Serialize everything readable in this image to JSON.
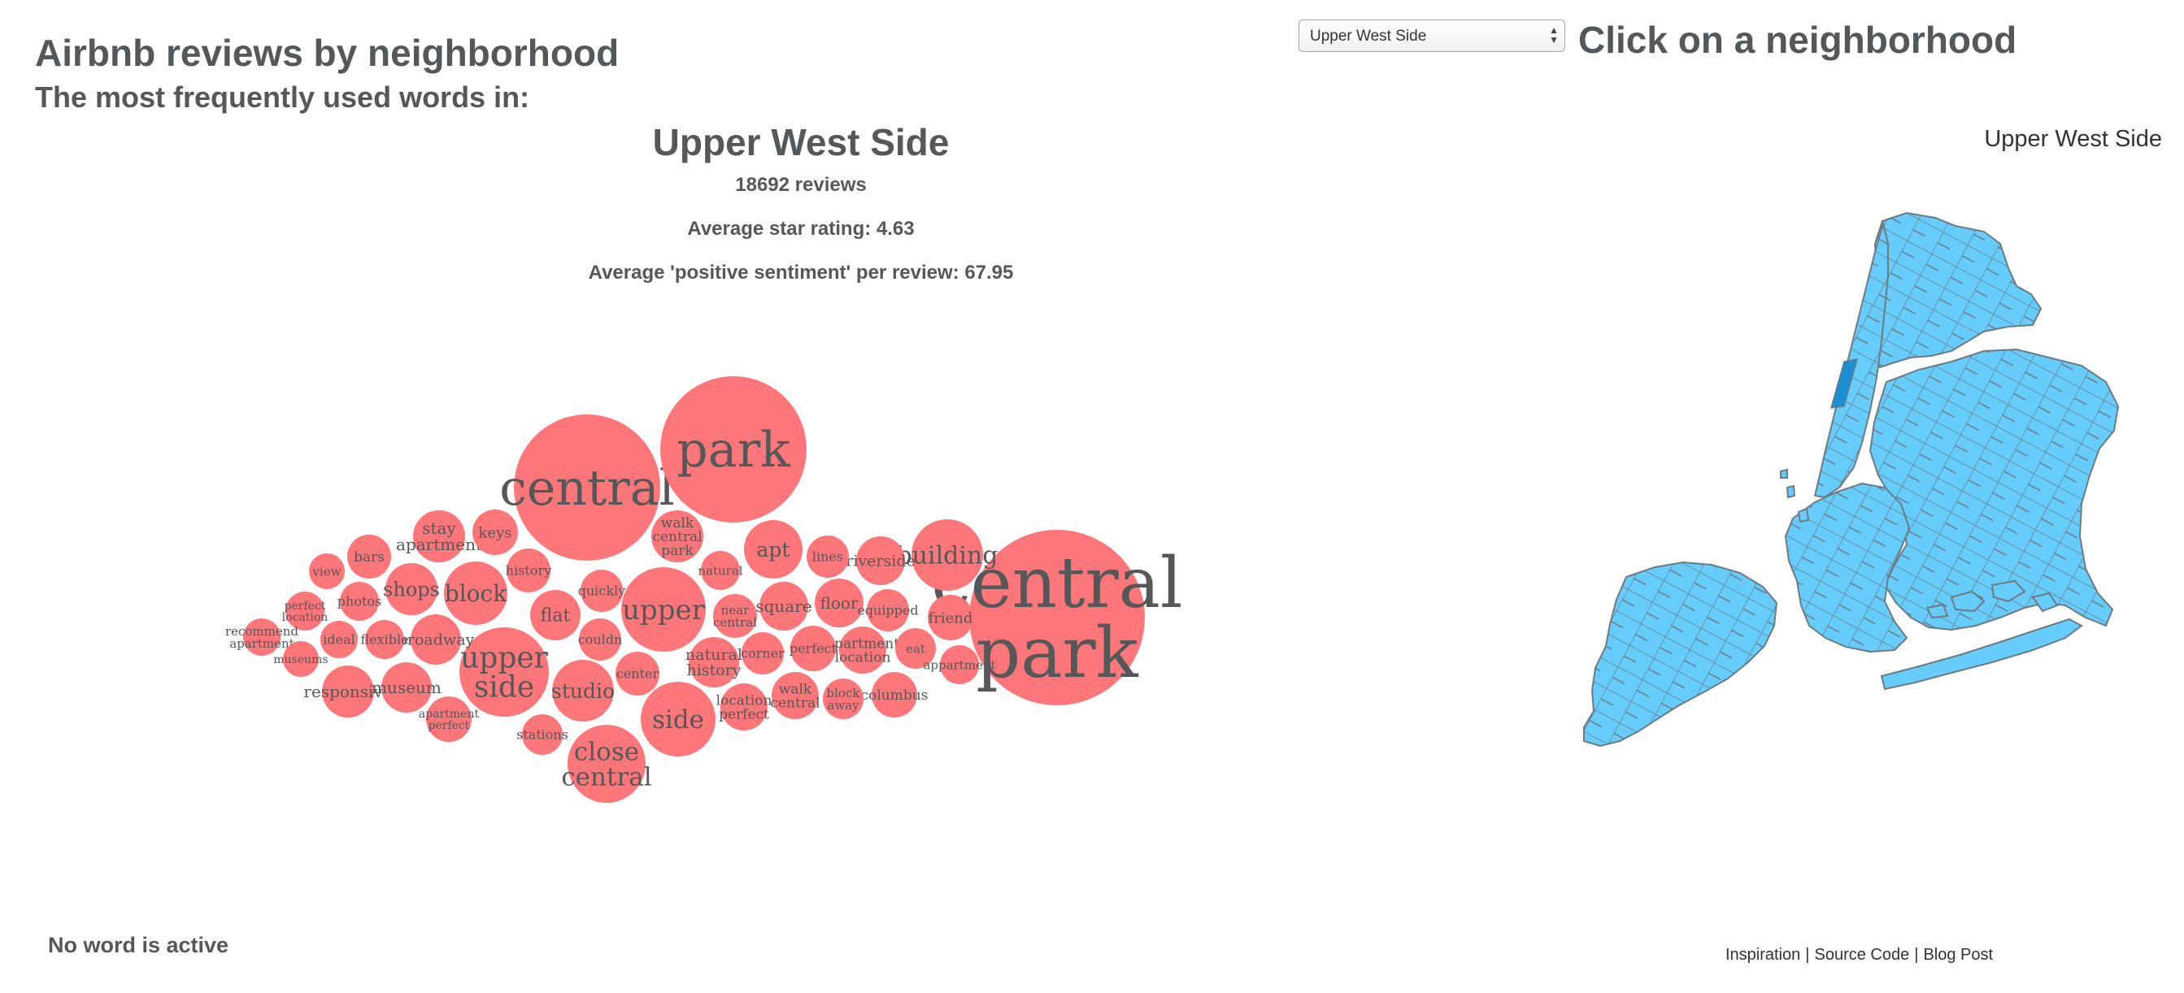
{
  "header": {
    "title": "Airbnb reviews by neighborhood",
    "subtitle": "The most frequently used words in:"
  },
  "summary": {
    "neighborhood": "Upper West Side",
    "reviews": "18692 reviews",
    "avg_rating": "Average star rating: 4.63",
    "avg_sentiment": "Average 'positive sentiment' per review: 67.95"
  },
  "bubbles": [
    {
      "lines": [
        "central",
        "park"
      ],
      "emphasis": "largest"
    },
    {
      "lines": [
        "central"
      ],
      "emphasis": "large"
    },
    {
      "lines": [
        "park"
      ],
      "emphasis": "large"
    },
    {
      "lines": [
        "upper",
        "side"
      ]
    },
    {
      "lines": [
        "upper"
      ]
    },
    {
      "lines": [
        "close",
        "central"
      ]
    },
    {
      "lines": [
        "side"
      ]
    },
    {
      "lines": [
        "building"
      ]
    },
    {
      "lines": [
        "block"
      ]
    },
    {
      "lines": [
        "studio"
      ]
    },
    {
      "lines": [
        "apt"
      ]
    },
    {
      "lines": [
        "walk",
        "central",
        "park"
      ]
    },
    {
      "lines": [
        "shops"
      ]
    },
    {
      "lines": [
        "stay",
        "apartment"
      ]
    },
    {
      "lines": [
        "flat"
      ]
    },
    {
      "lines": [
        "responsive"
      ]
    },
    {
      "lines": [
        "museum"
      ]
    },
    {
      "lines": [
        "broadway"
      ]
    },
    {
      "lines": [
        "natural",
        "history"
      ]
    },
    {
      "lines": [
        "riverside"
      ]
    },
    {
      "lines": [
        "square"
      ]
    },
    {
      "lines": [
        "floor"
      ]
    },
    {
      "lines": [
        "walk",
        "central"
      ]
    },
    {
      "lines": [
        "columbus"
      ]
    },
    {
      "lines": [
        "apartment",
        "location"
      ]
    },
    {
      "lines": [
        "location",
        "perfect"
      ]
    },
    {
      "lines": [
        "friend"
      ]
    },
    {
      "lines": [
        "keys"
      ]
    },
    {
      "lines": [
        "apartment",
        "perfect"
      ]
    },
    {
      "lines": [
        "perfect"
      ]
    },
    {
      "lines": [
        "bars"
      ]
    },
    {
      "lines": [
        "history"
      ]
    },
    {
      "lines": [
        "near",
        "central"
      ]
    },
    {
      "lines": [
        "center"
      ]
    },
    {
      "lines": [
        "corner"
      ]
    },
    {
      "lines": [
        "lines"
      ]
    },
    {
      "lines": [
        "quickly"
      ]
    },
    {
      "lines": [
        "couldn"
      ]
    },
    {
      "lines": [
        "natural"
      ]
    },
    {
      "lines": [
        "equipped"
      ]
    },
    {
      "lines": [
        "eat"
      ]
    },
    {
      "lines": [
        "block",
        "away"
      ]
    },
    {
      "lines": [
        "photos"
      ]
    },
    {
      "lines": [
        "perfect",
        "location"
      ]
    },
    {
      "lines": [
        "ideal"
      ]
    },
    {
      "lines": [
        "flexible"
      ]
    },
    {
      "lines": [
        "recommend",
        "apartment"
      ]
    },
    {
      "lines": [
        "museums"
      ]
    },
    {
      "lines": [
        "view"
      ]
    },
    {
      "lines": [
        "stations"
      ]
    },
    {
      "lines": [
        "appartment"
      ]
    }
  ],
  "status": "No word is active",
  "selector": {
    "selected": "Upper West Side"
  },
  "map": {
    "title": "Click on a neighborhood",
    "hover_label": "Upper West Side",
    "fill_color": "#66ccfb",
    "highlight_color": "#1a8fd6",
    "border_color": "#6b7b82"
  },
  "footer": {
    "inspiration": "Inspiration",
    "source": "Source Code",
    "blog": "Blog Post",
    "separator": "|"
  },
  "colors": {
    "bubble": "#fd7679",
    "text": "#555759"
  }
}
